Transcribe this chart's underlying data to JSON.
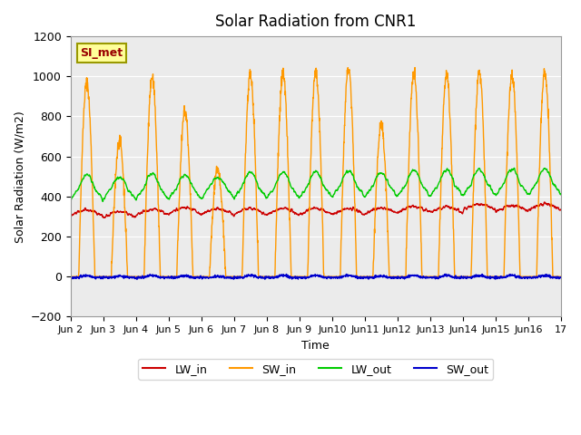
{
  "title": "Solar Radiation from CNR1",
  "xlabel": "Time",
  "ylabel": "Solar Radiation (W/m2)",
  "ylim": [
    -200,
    1200
  ],
  "yticks": [
    -200,
    0,
    200,
    400,
    600,
    800,
    1000,
    1200
  ],
  "background_color": "#ffffff",
  "plot_bg_color": "#ebebeb",
  "colors": {
    "LW_in": "#cc0000",
    "SW_in": "#ff9900",
    "LW_out": "#00cc00",
    "SW_out": "#0000cc"
  },
  "annotation_text": "SI_met",
  "annotation_box_color": "#ffff99",
  "annotation_border_color": "#999900",
  "annotation_text_color": "#990000",
  "num_days": 15,
  "start_day": 2,
  "points_per_day": 144,
  "lw_in_base": 320,
  "lw_out_base": 380,
  "sw_in_peak": 1000,
  "sw_out_near_zero": -5
}
